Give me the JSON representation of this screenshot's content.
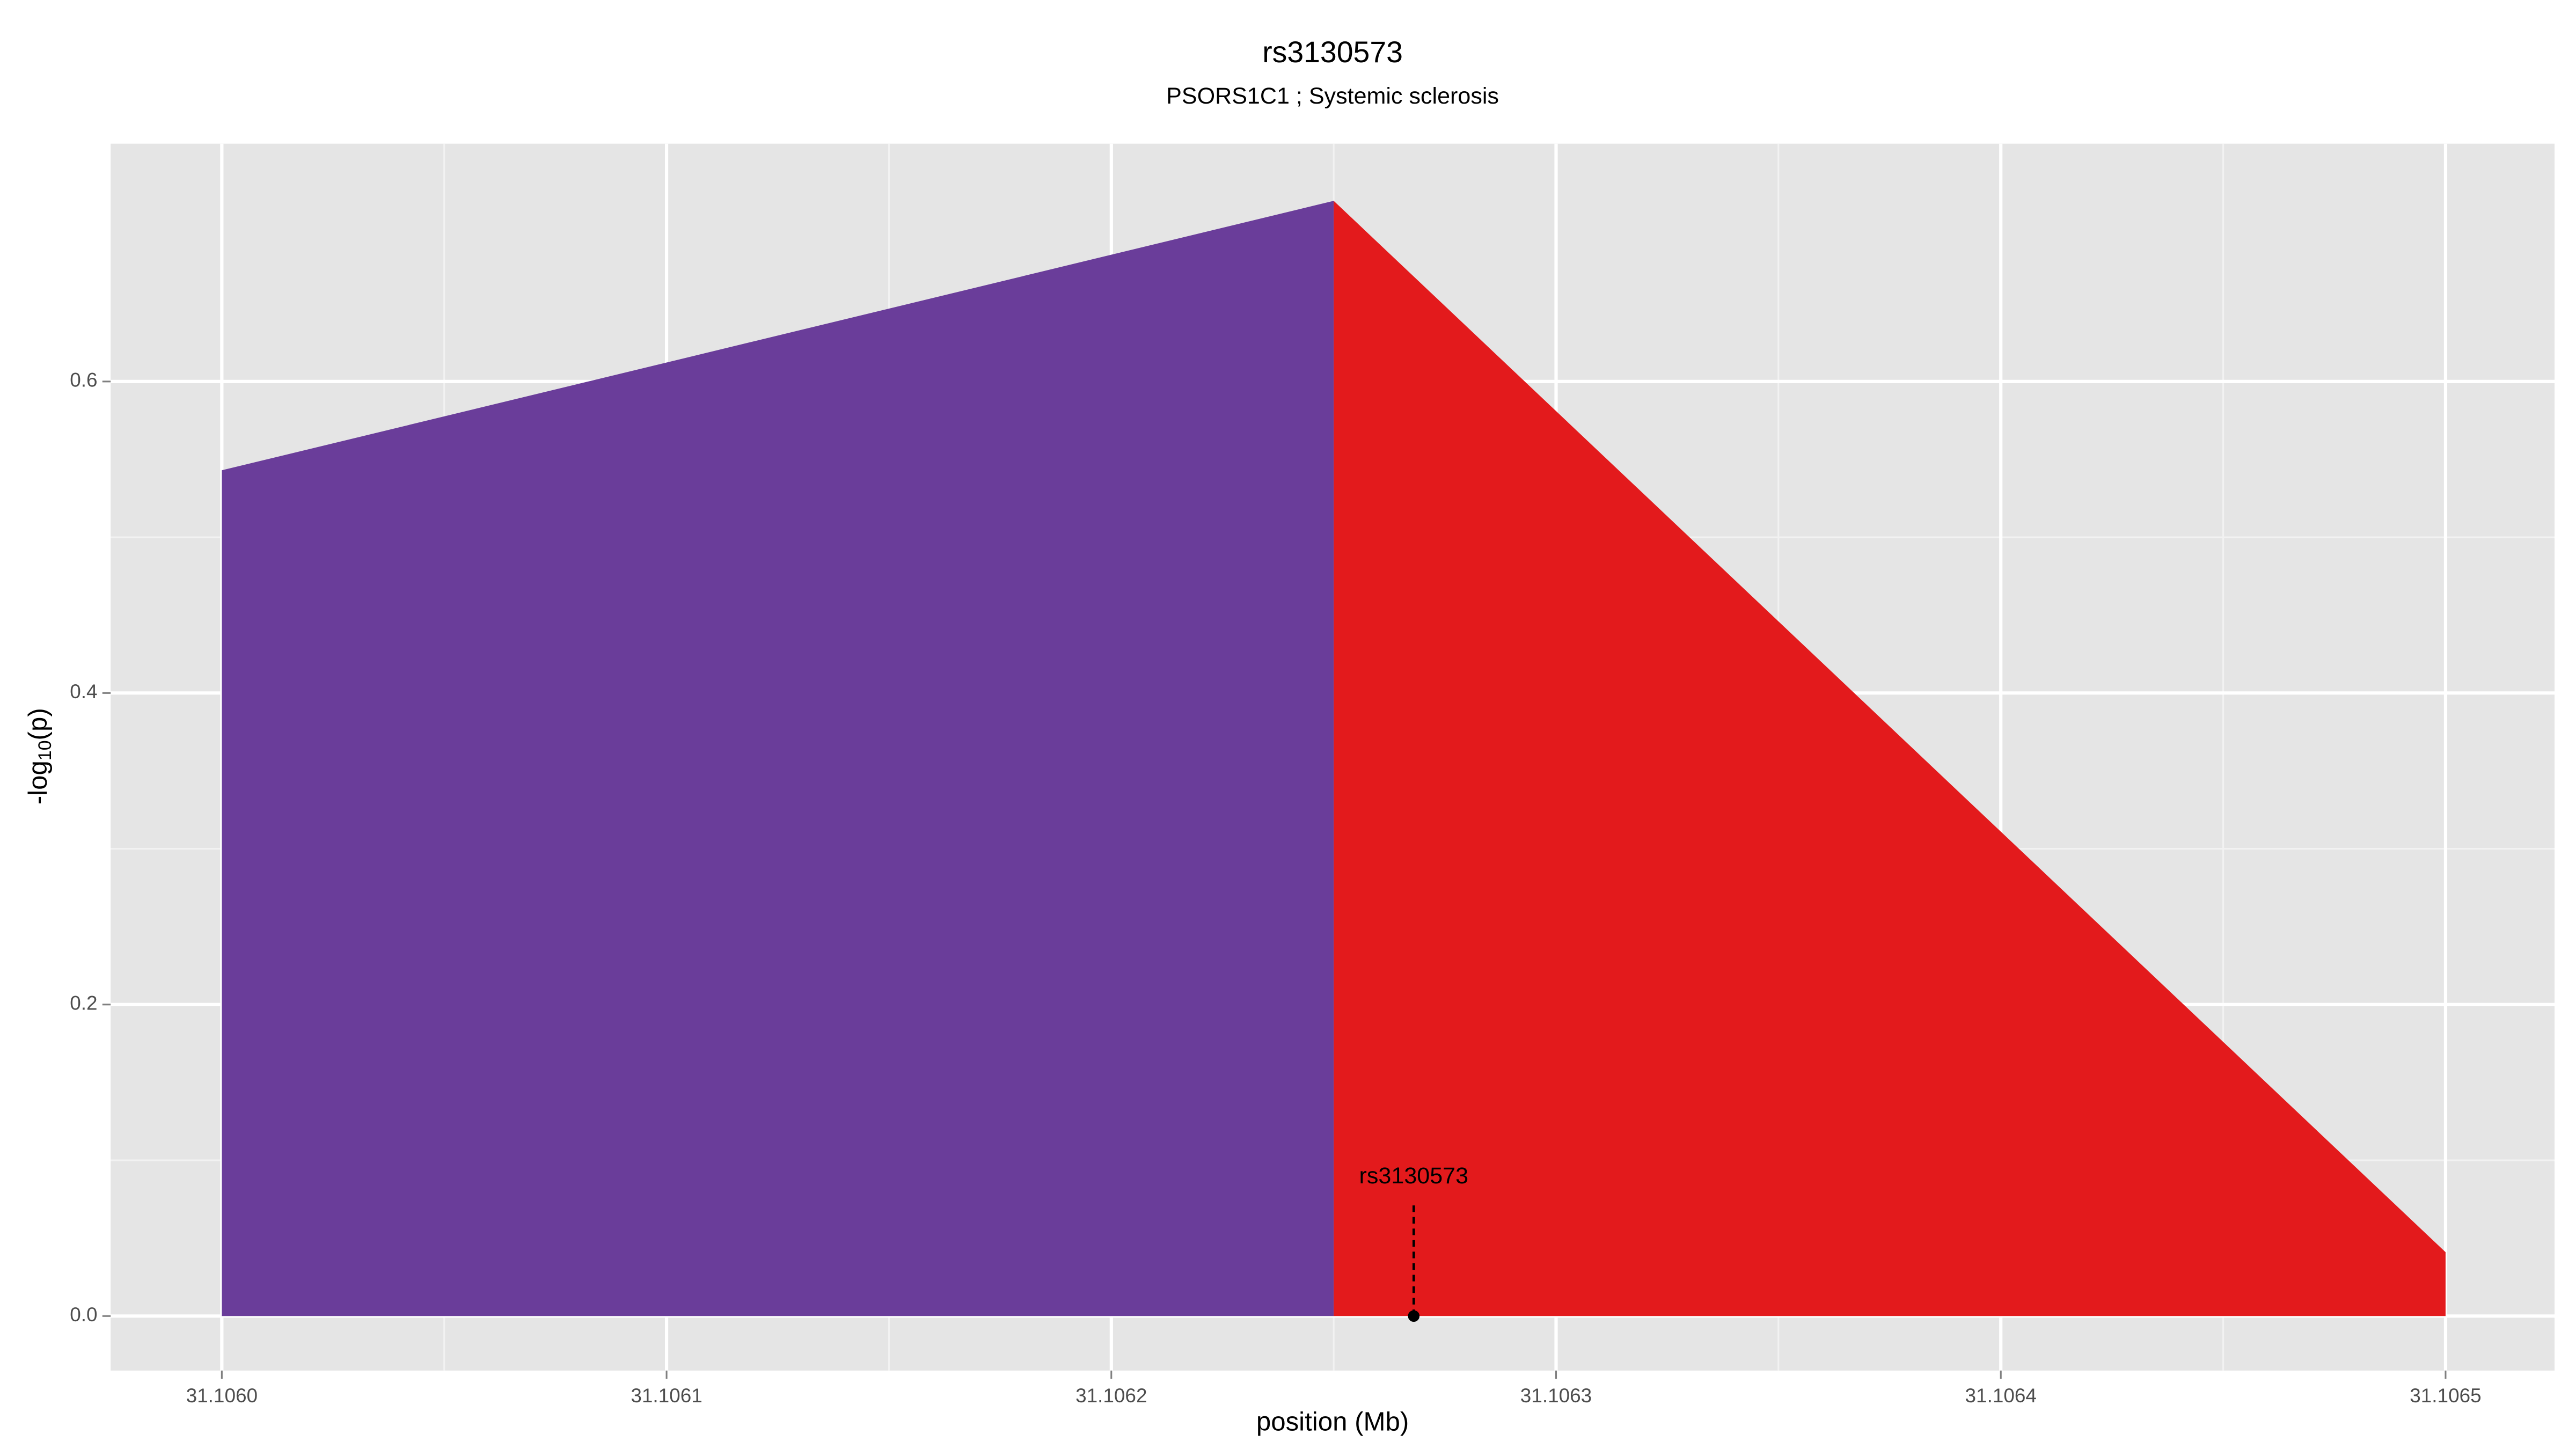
{
  "chart_data": {
    "type": "area",
    "title": "rs3130573",
    "subtitle": "PSORS1C1 ; Systemic sclerosis",
    "x_label": "position (Mb)",
    "y_label": {
      "before": "-log",
      "sub": "10",
      "after": "(p)"
    },
    "series": [
      {
        "color": "#6a3d9a",
        "x": [
          31.106,
          31.10625
        ],
        "values": [
          0.543,
          0.716
        ]
      },
      {
        "color": "#e31a1c",
        "x": [
          31.10625,
          31.1065
        ],
        "values": [
          0.716,
          0.041
        ]
      }
    ],
    "annotations": [
      {
        "label": "rs3130573",
        "x": 31.106268,
        "y": 0
      }
    ],
    "xlim": [
      31.105975,
      31.1065245
    ],
    "ylim": [
      -0.035,
      0.7527
    ],
    "xticks": [
      {
        "value": 31.106,
        "label": "31.1060"
      },
      31.1061,
      31.1062,
      31.1063,
      31.1064,
      31.1065
    ],
    "yticks": [
      {
        "value": 0,
        "label": "0.0"
      },
      0.2,
      0.4,
      0.6
    ],
    "grid": true
  }
}
